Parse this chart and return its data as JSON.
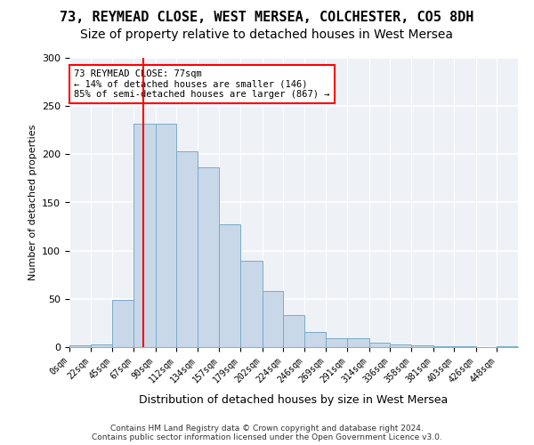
{
  "title1": "73, REYMEAD CLOSE, WEST MERSEA, COLCHESTER, CO5 8DH",
  "title2": "Size of property relative to detached houses in West Mersea",
  "xlabel": "Distribution of detached houses by size in West Mersea",
  "ylabel": "Number of detached properties",
  "footnote1": "Contains HM Land Registry data © Crown copyright and database right 2024.",
  "footnote2": "Contains public sector information licensed under the Open Government Licence v3.0.",
  "bin_labels": [
    "0sqm",
    "22sqm",
    "45sqm",
    "67sqm",
    "90sqm",
    "112sqm",
    "134sqm",
    "157sqm",
    "179sqm",
    "202sqm",
    "224sqm",
    "246sqm",
    "269sqm",
    "291sqm",
    "314sqm",
    "336sqm",
    "358sqm",
    "381sqm",
    "403sqm",
    "426sqm",
    "448sqm"
  ],
  "bar_heights": [
    2,
    3,
    49,
    232,
    232,
    203,
    186,
    127,
    90,
    58,
    33,
    16,
    9,
    9,
    5,
    3,
    2,
    1,
    1,
    0,
    1
  ],
  "bar_color": "#c8d8e8",
  "bar_edge_color": "#7aaac8",
  "vline_x": 77,
  "annotation_text": "73 REYMEAD CLOSE: 77sqm\n← 14% of detached houses are smaller (146)\n85% of semi-detached houses are larger (867) →",
  "annotation_box_color": "white",
  "annotation_box_edge": "red",
  "vline_color": "red",
  "ylim": [
    0,
    300
  ],
  "yticks": [
    0,
    50,
    100,
    150,
    200,
    250,
    300
  ],
  "background_color": "#eef2f7",
  "grid_color": "white",
  "title1_fontsize": 11,
  "title2_fontsize": 10,
  "bin_edges": [
    0,
    22,
    45,
    67,
    90,
    112,
    134,
    157,
    179,
    202,
    224,
    246,
    269,
    291,
    314,
    336,
    358,
    381,
    403,
    426,
    448,
    470
  ]
}
